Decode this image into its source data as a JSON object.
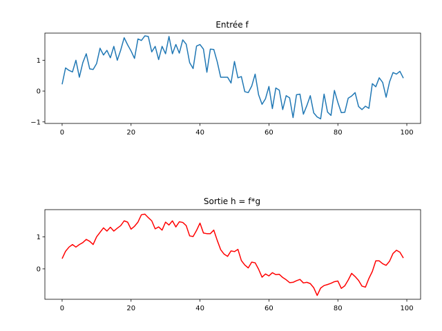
{
  "chart_data": [
    {
      "type": "line",
      "title": "Entrée f",
      "xlabel": "",
      "ylabel": "",
      "xlim": [
        -5,
        104
      ],
      "ylim": [
        -1.05,
        1.88
      ],
      "xticks": [
        0,
        20,
        40,
        60,
        80,
        100
      ],
      "yticks": [
        -1,
        0,
        1
      ],
      "color": "#1f77b4",
      "grid": false,
      "x_start": 0,
      "x_step": 1,
      "values": [
        0.22,
        0.75,
        0.67,
        0.62,
        1.0,
        0.45,
        0.92,
        1.21,
        0.72,
        0.7,
        0.89,
        1.39,
        1.17,
        1.32,
        1.08,
        1.45,
        1.0,
        1.33,
        1.73,
        1.5,
        1.3,
        1.06,
        1.69,
        1.64,
        1.79,
        1.77,
        1.27,
        1.45,
        1.02,
        1.45,
        1.21,
        1.77,
        1.21,
        1.51,
        1.23,
        1.66,
        1.52,
        0.92,
        0.73,
        1.46,
        1.51,
        1.36,
        0.61,
        1.36,
        1.35,
        0.95,
        0.45,
        0.45,
        0.45,
        0.26,
        0.96,
        0.43,
        0.47,
        -0.02,
        -0.05,
        0.16,
        0.55,
        -0.12,
        -0.43,
        -0.25,
        0.15,
        -0.57,
        0.1,
        0.03,
        -0.6,
        -0.15,
        -0.22,
        -0.86,
        -0.12,
        -0.1,
        -0.75,
        -0.47,
        -0.15,
        -0.71,
        -0.84,
        -0.9,
        -0.1,
        -0.68,
        -0.79,
        0.02,
        -0.37,
        -0.7,
        -0.69,
        -0.23,
        -0.16,
        -0.05,
        -0.5,
        -0.6,
        -0.49,
        -0.56,
        0.24,
        0.14,
        0.43,
        0.28,
        -0.2,
        0.3,
        0.6,
        0.55,
        0.64,
        0.42
      ]
    },
    {
      "type": "line",
      "title": "Sortie h = f*g",
      "xlabel": "",
      "ylabel": "",
      "xlim": [
        -5,
        104
      ],
      "ylim": [
        -0.95,
        1.85
      ],
      "xticks": [
        0,
        20,
        40,
        60,
        80,
        100
      ],
      "yticks": [
        0,
        1
      ],
      "color": "#ff0000",
      "grid": false,
      "x_start": 0,
      "x_step": 1,
      "values": [
        0.32,
        0.55,
        0.68,
        0.76,
        0.68,
        0.76,
        0.82,
        0.92,
        0.86,
        0.76,
        1.0,
        1.14,
        1.28,
        1.18,
        1.3,
        1.18,
        1.27,
        1.35,
        1.5,
        1.46,
        1.24,
        1.33,
        1.46,
        1.69,
        1.71,
        1.6,
        1.5,
        1.25,
        1.31,
        1.21,
        1.46,
        1.37,
        1.5,
        1.31,
        1.47,
        1.45,
        1.35,
        1.03,
        1.01,
        1.2,
        1.43,
        1.12,
        1.1,
        1.1,
        1.21,
        0.89,
        0.6,
        0.46,
        0.39,
        0.56,
        0.54,
        0.61,
        0.26,
        0.12,
        0.03,
        0.21,
        0.19,
        -0.01,
        -0.26,
        -0.16,
        -0.22,
        -0.12,
        -0.18,
        -0.17,
        -0.27,
        -0.34,
        -0.43,
        -0.42,
        -0.37,
        -0.33,
        -0.44,
        -0.42,
        -0.46,
        -0.59,
        -0.83,
        -0.6,
        -0.52,
        -0.49,
        -0.45,
        -0.4,
        -0.38,
        -0.61,
        -0.53,
        -0.35,
        -0.14,
        -0.24,
        -0.36,
        -0.54,
        -0.57,
        -0.3,
        -0.08,
        0.25,
        0.25,
        0.16,
        0.11,
        0.24,
        0.48,
        0.58,
        0.52,
        0.34
      ]
    }
  ]
}
